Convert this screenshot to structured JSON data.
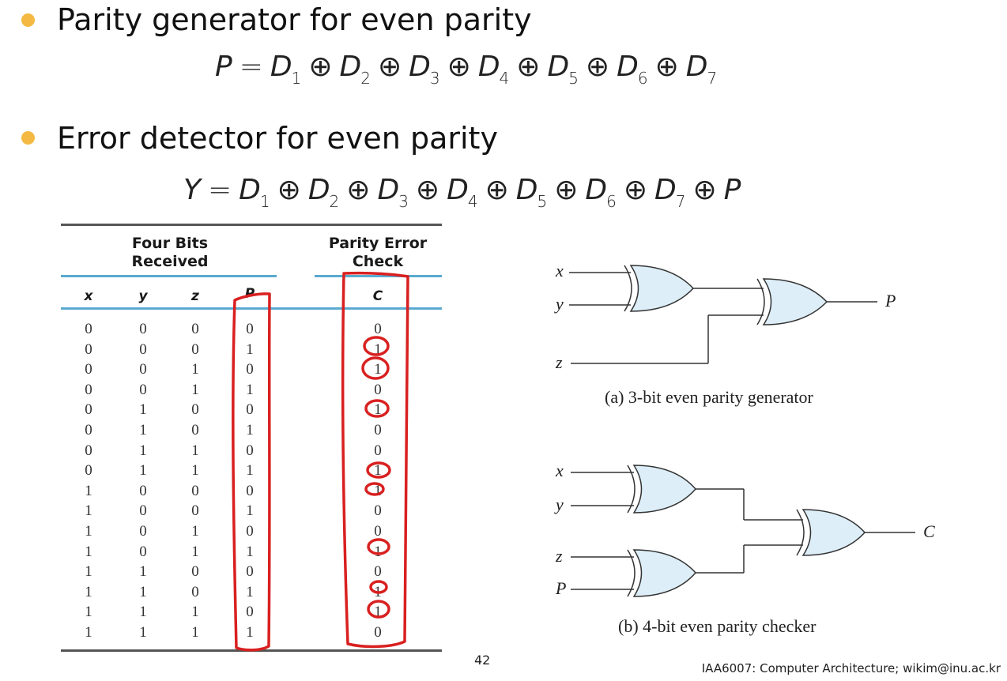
{
  "colors": {
    "bullet": "#f4b942",
    "gate_fill": "#ddeef8",
    "table_rule": "#5aaad0",
    "annotation": "#d92020"
  },
  "slide": {
    "bullets": [
      {
        "heading": "Parity generator for even parity",
        "equation": {
          "lhs": "P",
          "eq": "=",
          "terms": [
            {
              "var": "D",
              "sub": "1"
            },
            {
              "var": "D",
              "sub": "2"
            },
            {
              "var": "D",
              "sub": "3"
            },
            {
              "var": "D",
              "sub": "4"
            },
            {
              "var": "D",
              "sub": "5"
            },
            {
              "var": "D",
              "sub": "6"
            },
            {
              "var": "D",
              "sub": "7"
            }
          ],
          "op": "⊕"
        }
      },
      {
        "heading": "Error detector for even parity",
        "equation": {
          "lhs": "Y",
          "eq": "=",
          "terms": [
            {
              "var": "D",
              "sub": "1"
            },
            {
              "var": "D",
              "sub": "2"
            },
            {
              "var": "D",
              "sub": "3"
            },
            {
              "var": "D",
              "sub": "4"
            },
            {
              "var": "D",
              "sub": "5"
            },
            {
              "var": "D",
              "sub": "6"
            },
            {
              "var": "D",
              "sub": "7"
            },
            {
              "var": "P",
              "sub": ""
            }
          ],
          "op": "⊕"
        }
      }
    ],
    "table": {
      "group_headers": {
        "received": "Four Bits\nReceived",
        "check": "Parity Error\nCheck"
      },
      "columns": [
        "x",
        "y",
        "z",
        "P",
        "C"
      ],
      "rows": [
        [
          "0",
          "0",
          "0",
          "0",
          "0"
        ],
        [
          "0",
          "0",
          "0",
          "1",
          "1"
        ],
        [
          "0",
          "0",
          "1",
          "0",
          "1"
        ],
        [
          "0",
          "0",
          "1",
          "1",
          "0"
        ],
        [
          "0",
          "1",
          "0",
          "0",
          "1"
        ],
        [
          "0",
          "1",
          "0",
          "1",
          "0"
        ],
        [
          "0",
          "1",
          "1",
          "0",
          "0"
        ],
        [
          "0",
          "1",
          "1",
          "1",
          "1"
        ],
        [
          "1",
          "0",
          "0",
          "0",
          "1"
        ],
        [
          "1",
          "0",
          "0",
          "1",
          "0"
        ],
        [
          "1",
          "0",
          "1",
          "0",
          "0"
        ],
        [
          "1",
          "0",
          "1",
          "1",
          "1"
        ],
        [
          "1",
          "1",
          "0",
          "0",
          "0"
        ],
        [
          "1",
          "1",
          "0",
          "1",
          "1"
        ],
        [
          "1",
          "1",
          "1",
          "0",
          "1"
        ],
        [
          "1",
          "1",
          "1",
          "1",
          "0"
        ]
      ]
    },
    "diagram_a": {
      "inputs": [
        "x",
        "y",
        "z"
      ],
      "output": "P",
      "caption": "(a) 3-bit even parity generator"
    },
    "diagram_b": {
      "inputs": [
        "x",
        "y",
        "z",
        "P"
      ],
      "output": "C",
      "caption": "(b) 4-bit even parity checker"
    },
    "page_number": "42",
    "footer": "IAA6007: Computer Architecture; wikim@inu.ac.kr"
  }
}
